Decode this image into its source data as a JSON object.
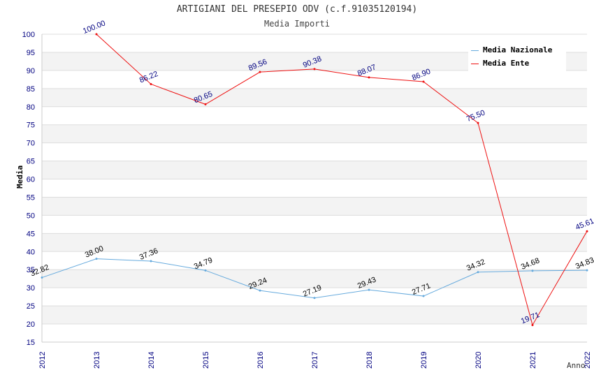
{
  "header": {
    "title": "ARTIGIANI DEL PRESEPIO ODV (c.f.91035120194)",
    "subtitle": "Media Importi"
  },
  "chart_data": {
    "type": "line",
    "title": "ARTIGIANI DEL PRESEPIO ODV (c.f.91035120194)",
    "subtitle": "Media Importi",
    "xlabel": "Anno",
    "ylabel": "Media",
    "x": [
      "2012",
      "2013",
      "2014",
      "2015",
      "2016",
      "2017",
      "2018",
      "2019",
      "2020",
      "2021",
      "2022"
    ],
    "ylim": [
      15,
      100
    ],
    "ytick_step": 5,
    "grid": true,
    "legend_position": "top-right",
    "series": [
      {
        "name": "Media Nazionale",
        "color": "#66aadd",
        "label_color": "#000000",
        "values": [
          32.82,
          38.0,
          37.36,
          34.79,
          29.24,
          27.19,
          29.43,
          27.71,
          34.32,
          34.68,
          34.83
        ],
        "labels": [
          "32.82",
          "38.00",
          "37.36",
          "34.79",
          "29.24",
          "27.19",
          "29.43",
          "27.71",
          "34.32",
          "34.68",
          "34.83"
        ]
      },
      {
        "name": "Media Ente",
        "color": "#ee1111",
        "label_color": "#000080",
        "values": [
          null,
          100.0,
          86.22,
          80.65,
          89.56,
          90.38,
          88.07,
          86.9,
          75.5,
          19.71,
          45.61
        ],
        "labels": [
          null,
          "100.00",
          "86.22",
          "80.65",
          "89.56",
          "90.38",
          "88.07",
          "86.90",
          "75.50",
          "19.71",
          "45.61"
        ]
      }
    ]
  }
}
